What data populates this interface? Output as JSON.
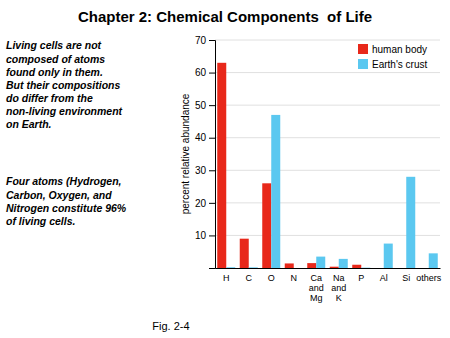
{
  "chart_data": {
    "type": "bar",
    "title": "Chapter 2: Chemical Components  of Life",
    "categories": [
      "H",
      "C",
      "O",
      "N",
      "Ca\nand\nMg",
      "Na\nand\nK",
      "P",
      "Al",
      "Si",
      "others"
    ],
    "series": [
      {
        "name": "human body",
        "color": "#e8281a",
        "values": [
          63,
          9,
          26,
          1.4,
          1.5,
          0.4,
          1.0,
          0,
          0,
          0
        ]
      },
      {
        "name": "Earth's crust",
        "color": "#5bc8f0",
        "values": [
          0.22,
          0.19,
          47,
          0,
          3.5,
          2.8,
          0.1,
          7.5,
          28,
          4.5
        ]
      }
    ],
    "y_label": "percent relative abundance",
    "ylim": [
      0,
      70
    ],
    "yticks": [
      10,
      20,
      30,
      40,
      50,
      60,
      70
    ],
    "grid": true,
    "legend": "upper right",
    "annotations": [
      "Living cells are not\ncomposed of atoms\nfound only in them.\nBut their compositions\ndo differ from the\nnon-living environment\non Earth.",
      "Four atoms (Hydrogen,\nCarbon, Oxygen, and\nNitrogen constitute 96%\nof living cells.",
      "Fig. 2-4"
    ]
  }
}
